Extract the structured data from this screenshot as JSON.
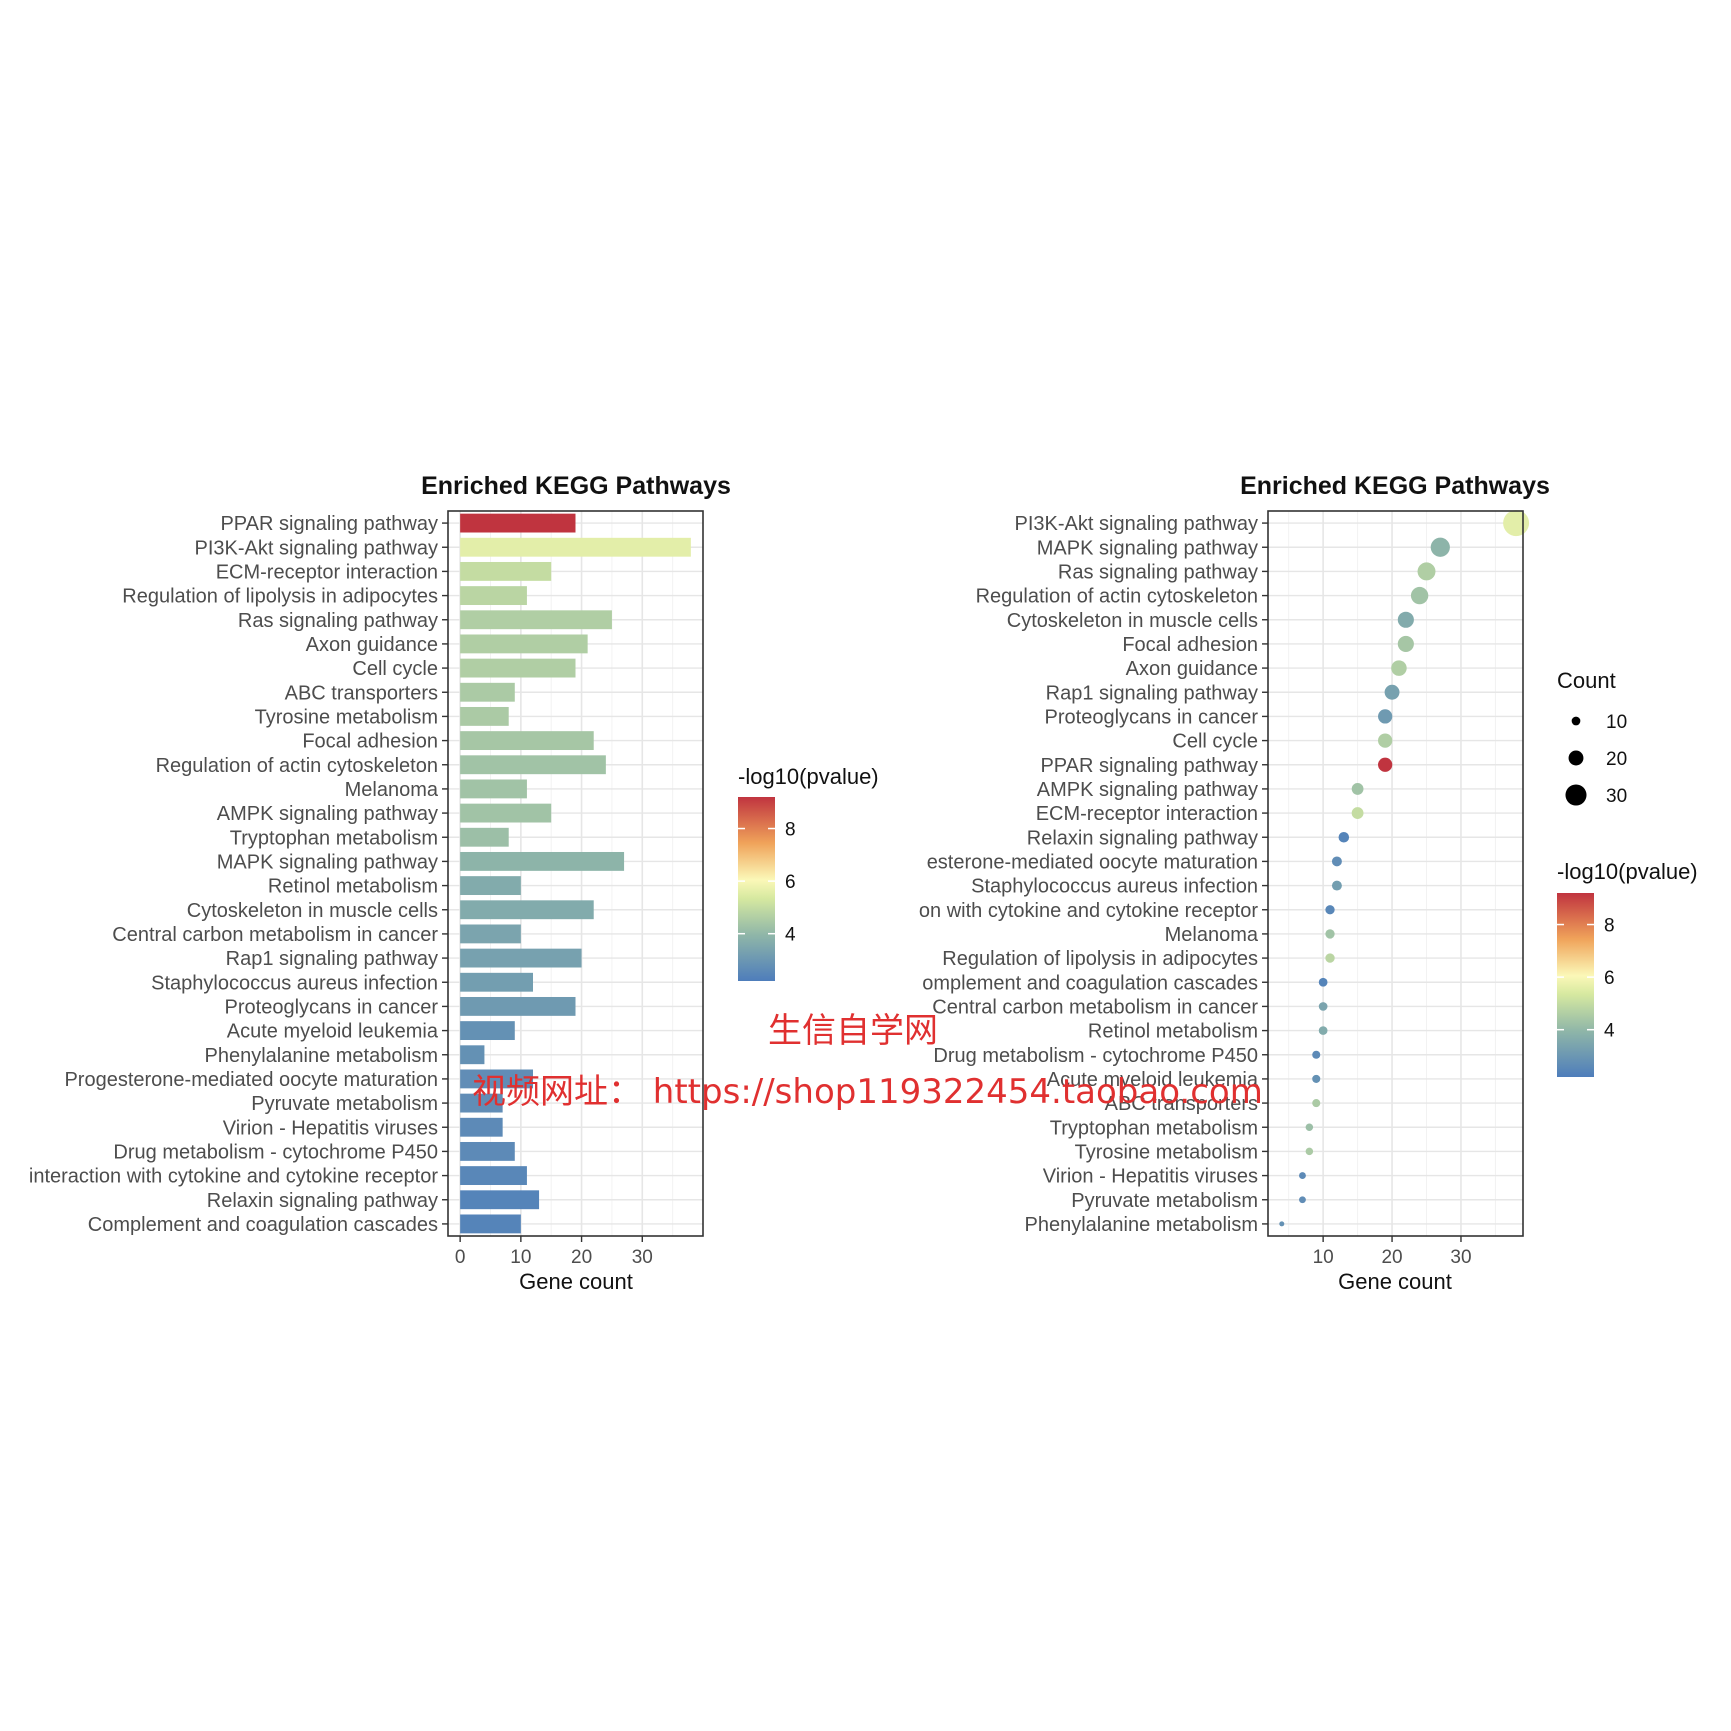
{
  "chart_data": [
    {
      "type": "bar",
      "title": "Enriched KEGG Pathways",
      "xlabel": "Gene count",
      "ylabel": "",
      "xlim": [
        -2,
        40
      ],
      "x_ticks": [
        0,
        10,
        20,
        30
      ],
      "grid": true,
      "orientation": "horizontal",
      "color_legend": {
        "title": "-log10(pvalue)",
        "ticks": [
          4,
          6,
          8
        ],
        "range": [
          2.2,
          9.2
        ],
        "placement": "right"
      },
      "categories": [
        "PPAR signaling pathway",
        "PI3K-Akt signaling pathway",
        "ECM-receptor interaction",
        "Regulation of lipolysis in adipocytes",
        "Ras signaling pathway",
        "Axon guidance",
        "Cell cycle",
        "ABC transporters",
        "Tyrosine metabolism",
        "Focal adhesion",
        "Regulation of actin cytoskeleton",
        "Melanoma",
        "AMPK signaling pathway",
        "Tryptophan metabolism",
        "MAPK signaling pathway",
        "Retinol metabolism",
        "Cytoskeleton in muscle cells",
        "Central carbon metabolism in cancer",
        "Rap1 signaling pathway",
        "Staphylococcus aureus infection",
        "Proteoglycans in cancer",
        "Acute myeloid leukemia",
        "Phenylalanine metabolism",
        "Progesterone-mediated oocyte maturation",
        "Pyruvate metabolism",
        "Virion - Hepatitis viruses",
        "Drug metabolism - cytochrome P450",
        "interaction with cytokine and cytokine receptor",
        "Relaxin signaling pathway",
        "Complement and coagulation cascades"
      ],
      "values": [
        19,
        38,
        15,
        11,
        25,
        21,
        19,
        9,
        8,
        22,
        24,
        11,
        15,
        8,
        27,
        10,
        22,
        10,
        20,
        12,
        19,
        9,
        4,
        12,
        7,
        7,
        9,
        11,
        13,
        10
      ],
      "neg_log10_pvalue": [
        9.2,
        5.6,
        5.0,
        4.8,
        4.6,
        4.6,
        4.6,
        4.5,
        4.5,
        4.4,
        4.3,
        4.3,
        4.3,
        4.2,
        3.9,
        3.6,
        3.6,
        3.4,
        3.3,
        3.2,
        3.1,
        2.8,
        2.8,
        2.7,
        2.7,
        2.6,
        2.6,
        2.5,
        2.4,
        2.4
      ]
    },
    {
      "type": "scatter",
      "title": "Enriched KEGG Pathways",
      "xlabel": "Gene count",
      "ylabel": "",
      "xlim": [
        2,
        39
      ],
      "x_ticks": [
        10,
        20,
        30
      ],
      "grid": true,
      "size_legend": {
        "title": "Count",
        "values": [
          10,
          20,
          30
        ],
        "placement": "right"
      },
      "color_legend": {
        "title": "-log10(pvalue)",
        "ticks": [
          4,
          6,
          8
        ],
        "range": [
          2.2,
          9.2
        ],
        "placement": "right"
      },
      "categories": [
        "PI3K-Akt signaling pathway",
        "MAPK signaling pathway",
        "Ras signaling pathway",
        "Regulation of actin cytoskeleton",
        "Cytoskeleton in muscle cells",
        "Focal adhesion",
        "Axon guidance",
        "Rap1 signaling pathway",
        "Proteoglycans in cancer",
        "Cell cycle",
        "PPAR signaling pathway",
        "AMPK signaling pathway",
        "ECM-receptor interaction",
        "Relaxin signaling pathway",
        "esterone-mediated oocyte maturation",
        "Staphylococcus aureus infection",
        "on with cytokine and cytokine receptor",
        "Melanoma",
        "Regulation of lipolysis in adipocytes",
        "omplement and coagulation cascades",
        "Central carbon metabolism in cancer",
        "Retinol metabolism",
        "Drug metabolism - cytochrome P450",
        "Acute myeloid leukemia",
        "ABC transporters",
        "Tryptophan metabolism",
        "Tyrosine metabolism",
        "Virion - Hepatitis viruses",
        "Pyruvate metabolism",
        "Phenylalanine metabolism"
      ],
      "values": [
        38,
        27,
        25,
        24,
        22,
        22,
        21,
        20,
        19,
        19,
        19,
        15,
        15,
        13,
        12,
        12,
        11,
        11,
        11,
        10,
        10,
        10,
        9,
        9,
        9,
        8,
        8,
        7,
        7,
        4
      ],
      "neg_log10_pvalue": [
        5.6,
        3.9,
        4.6,
        4.3,
        3.6,
        4.4,
        4.6,
        3.3,
        3.1,
        4.6,
        9.2,
        4.3,
        5.0,
        2.4,
        2.7,
        3.2,
        2.5,
        4.3,
        4.8,
        2.4,
        3.4,
        3.6,
        2.6,
        2.8,
        4.5,
        4.2,
        4.5,
        2.6,
        2.7,
        2.8
      ]
    }
  ],
  "watermark": {
    "line1": "生信自学网",
    "line2": "视频网址：  https://shop119322454.taobao.com",
    "color": "#e03030"
  },
  "palette": {
    "low": "#4e7dbb",
    "mid_low": "#8fb6a8",
    "mid": "#d6e9a0",
    "mid_high": "#fbf8b8",
    "high": "#c0343f"
  }
}
